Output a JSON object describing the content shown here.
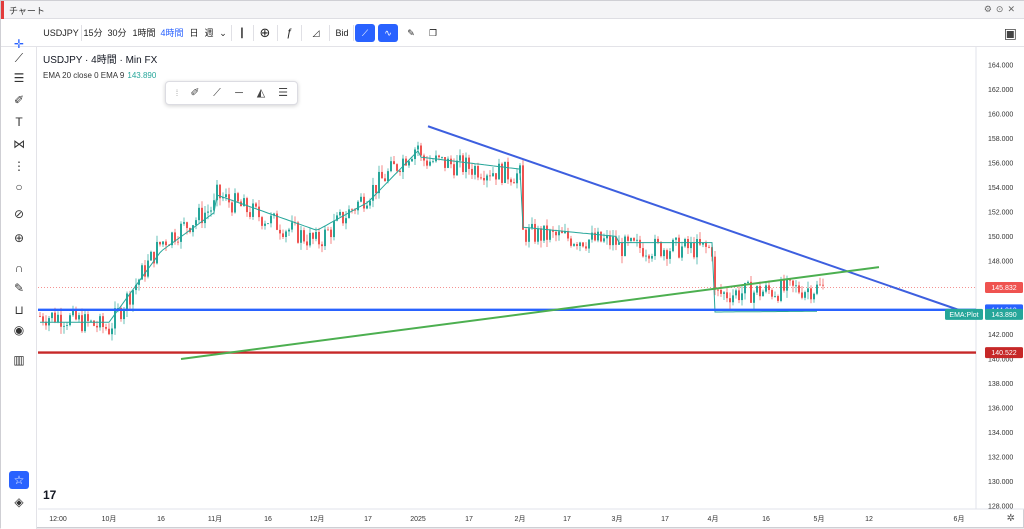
{
  "window": {
    "title": "チャート",
    "controls": [
      "⚙",
      "⊙",
      "✕"
    ]
  },
  "toolbar": {
    "symbol": "USDJPY",
    "intervals": [
      "15分",
      "30分",
      "1時間",
      "4時間",
      "日",
      "週"
    ],
    "active_interval": "4時間",
    "price_type": "Bid"
  },
  "legend": {
    "title": "USDJPY · 4時間 · Min FX",
    "indicator": "EMA 20 close 0 EMA 9",
    "indicator_value": "143.890"
  },
  "colors": {
    "up": "#26a69a",
    "down": "#ef5350",
    "ema": "#26a69a",
    "trend_down": "#3d5fdf",
    "support": "#c62828",
    "blue_level": "#2962ff",
    "trend_up": "#4caf50",
    "current": "#ef5350"
  },
  "price_scale": {
    "ticks": [
      "164.000",
      "162.000",
      "160.000",
      "158.000",
      "156.000",
      "154.000",
      "152.000",
      "150.000",
      "148.000",
      "146.000",
      "144.000",
      "142.000",
      "140.000",
      "138.000",
      "136.000",
      "134.000",
      "132.000",
      "130.000",
      "128.000"
    ],
    "badges": [
      {
        "label": "145.832",
        "price": 145.832,
        "color": "#ef5350"
      },
      {
        "label": "144.012",
        "price": 144.012,
        "color": "#2962ff"
      },
      {
        "label": "143.890",
        "price": 143.89,
        "color": "#26a69a"
      },
      {
        "label": "140.522",
        "price": 140.522,
        "color": "#c62828"
      }
    ],
    "ema_tag": "EMA:Plot"
  },
  "time_scale": {
    "labels": [
      "12:00",
      "10月",
      "16",
      "11月",
      "16",
      "12月",
      "17",
      "2025",
      "17",
      "2月",
      "17",
      "3月",
      "17",
      "4月",
      "16",
      "5月",
      "12",
      "6月"
    ]
  },
  "chart_data": {
    "type": "line",
    "title": "USDJPY · 4時間 · Min FX",
    "xlabel": "",
    "ylabel": "",
    "ylim": [
      127,
      166
    ],
    "x": [
      "12:00",
      "10月",
      "16",
      "11月",
      "16",
      "12月",
      "17",
      "2025",
      "17",
      "2月",
      "17",
      "3月",
      "17",
      "4月",
      "16",
      "5月"
    ],
    "series": [
      {
        "name": "USDJPY",
        "values": [
          143.5,
          142.5,
          149.5,
          152.5,
          155.5,
          149.5,
          153.5,
          157.5,
          157.0,
          155.0,
          151.5,
          149.5,
          149.5,
          149.0,
          142.5,
          145.8
        ]
      },
      {
        "name": "EMA 20 close 0 EMA 9",
        "values": [
          143.0,
          143.0,
          148.8,
          152.0,
          155.0,
          150.5,
          152.8,
          157.0,
          157.0,
          155.5,
          152.0,
          150.0,
          149.5,
          149.5,
          143.5,
          143.9
        ]
      }
    ],
    "annotations": {
      "descending_trendline": {
        "from": [
          "2025",
          159.0
        ],
        "to": [
          "6月",
          144.0
        ]
      },
      "ascending_trendline": {
        "from": [
          "16",
          140.0
        ],
        "to": [
          "12",
          147.5
        ]
      },
      "horizontal_levels": [
        144.012,
        140.522
      ],
      "last_price": 145.832
    }
  }
}
